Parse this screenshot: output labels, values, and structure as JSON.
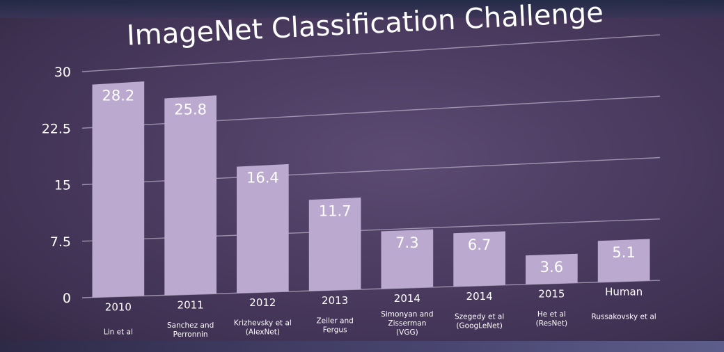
{
  "slide": {
    "title": "ImageNet Classification Challenge"
  },
  "colors": {
    "background": "#4b3b60",
    "bar": "#bba9cf",
    "text": "#ffffff",
    "grid": "#b8aec6"
  },
  "chart_data": {
    "type": "bar",
    "title": "ImageNet Classification Challenge",
    "xlabel": "",
    "ylabel": "",
    "ylim": [
      0,
      30
    ],
    "yticks": [
      "0",
      "7.5",
      "15",
      "22.5",
      "30"
    ],
    "grid": true,
    "categories": [
      "2010",
      "2011",
      "2012",
      "2013",
      "2014",
      "2014",
      "2015",
      "Human"
    ],
    "sublabels": [
      [
        "Lin et al"
      ],
      [
        "Sanchez and",
        "Perronnin"
      ],
      [
        "Krizhevsky et al",
        "(AlexNet)"
      ],
      [
        "Zeiler and",
        "Fergus"
      ],
      [
        "Simonyan and",
        "Zisserman",
        "(VGG)"
      ],
      [
        "Szegedy et al",
        "(GoogLeNet)"
      ],
      [
        "He et al",
        "(ResNet)"
      ],
      [
        "Russakovsky et al"
      ]
    ],
    "values": [
      28.2,
      25.8,
      16.4,
      11.7,
      7.3,
      6.7,
      3.6,
      5.1
    ],
    "value_labels": [
      "28.2",
      "25.8",
      "16.4",
      "11.7",
      "7.3",
      "6.7",
      "3.6",
      "5.1"
    ]
  }
}
